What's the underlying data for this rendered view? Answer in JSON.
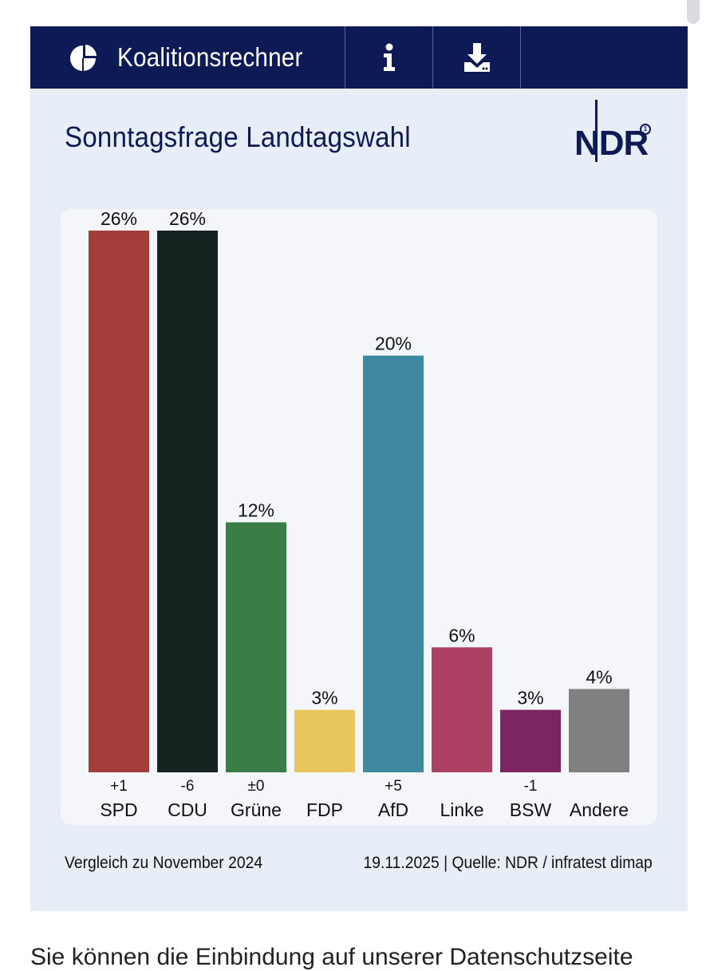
{
  "toolbar": {
    "label": "Koalitionsrechner",
    "icons": {
      "main": "pie-chart-icon",
      "info": "info-icon",
      "download": "download-icon"
    }
  },
  "logo": {
    "text": "NDR"
  },
  "chart_data": {
    "type": "bar",
    "title": "Sonntagsfrage Landtagswahl",
    "categories": [
      "SPD",
      "CDU",
      "Grüne",
      "FDP",
      "AfD",
      "Linke",
      "BSW",
      "Andere"
    ],
    "values": [
      26,
      26,
      12,
      3,
      20,
      6,
      3,
      4
    ],
    "value_labels": [
      "26%",
      "26%",
      "12%",
      "3%",
      "20%",
      "6%",
      "3%",
      "4%"
    ],
    "changes": [
      "+1",
      "-6",
      "±0",
      "",
      "+5",
      "",
      "-1",
      ""
    ],
    "colors": [
      "#a23d3a",
      "#172320",
      "#3a7d46",
      "#e7c65e",
      "#3e88a1",
      "#ac4164",
      "#7c2560",
      "#808080"
    ],
    "ylim": [
      0,
      26
    ],
    "grid": false,
    "xlabel": "",
    "ylabel": ""
  },
  "footer": {
    "comparison": "Vergleich zu November 2024",
    "source": "19.11.2025  |  Quelle: NDR / infratest dimap"
  },
  "below": {
    "text": "Sie können die Einbindung auf unserer Datenschutzseite"
  }
}
